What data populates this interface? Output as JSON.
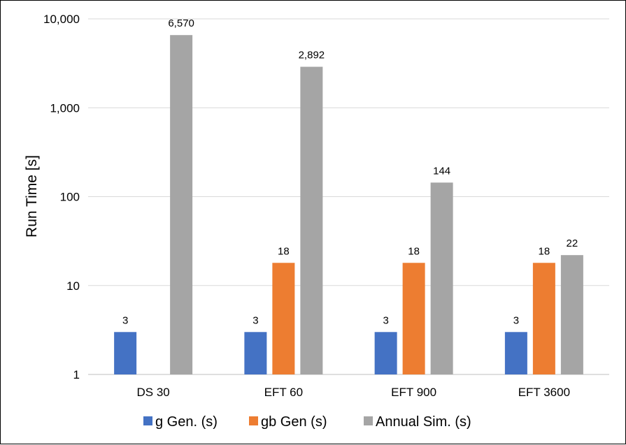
{
  "chart_data": {
    "type": "bar",
    "title": "",
    "xlabel": "",
    "ylabel": "Run Time [s]",
    "yscale": "log",
    "ylim": [
      1,
      10000
    ],
    "yticks": [
      1,
      10,
      100,
      1000,
      10000
    ],
    "ytick_labels": [
      "1",
      "10",
      "100",
      "1,000",
      "10,000"
    ],
    "grid": "horizontal",
    "legend": "bottom",
    "categories": [
      "DS 30",
      "EFT 60",
      "EFT 900",
      "EFT 3600"
    ],
    "series": [
      {
        "name": "g Gen. (s)",
        "color": "#4472C4",
        "values": [
          3,
          3,
          3,
          3
        ],
        "labels": [
          "3",
          "3",
          "3",
          "3"
        ]
      },
      {
        "name": "gb Gen (s)",
        "color": "#ED7D31",
        "values": [
          null,
          18,
          18,
          18
        ],
        "labels": [
          "",
          "18",
          "18",
          "18"
        ]
      },
      {
        "name": "Annual Sim. (s)",
        "color": "#A5A5A5",
        "values": [
          6570,
          2892,
          144,
          22
        ],
        "labels": [
          "6,570",
          "2,892",
          "144",
          "22"
        ]
      }
    ]
  }
}
